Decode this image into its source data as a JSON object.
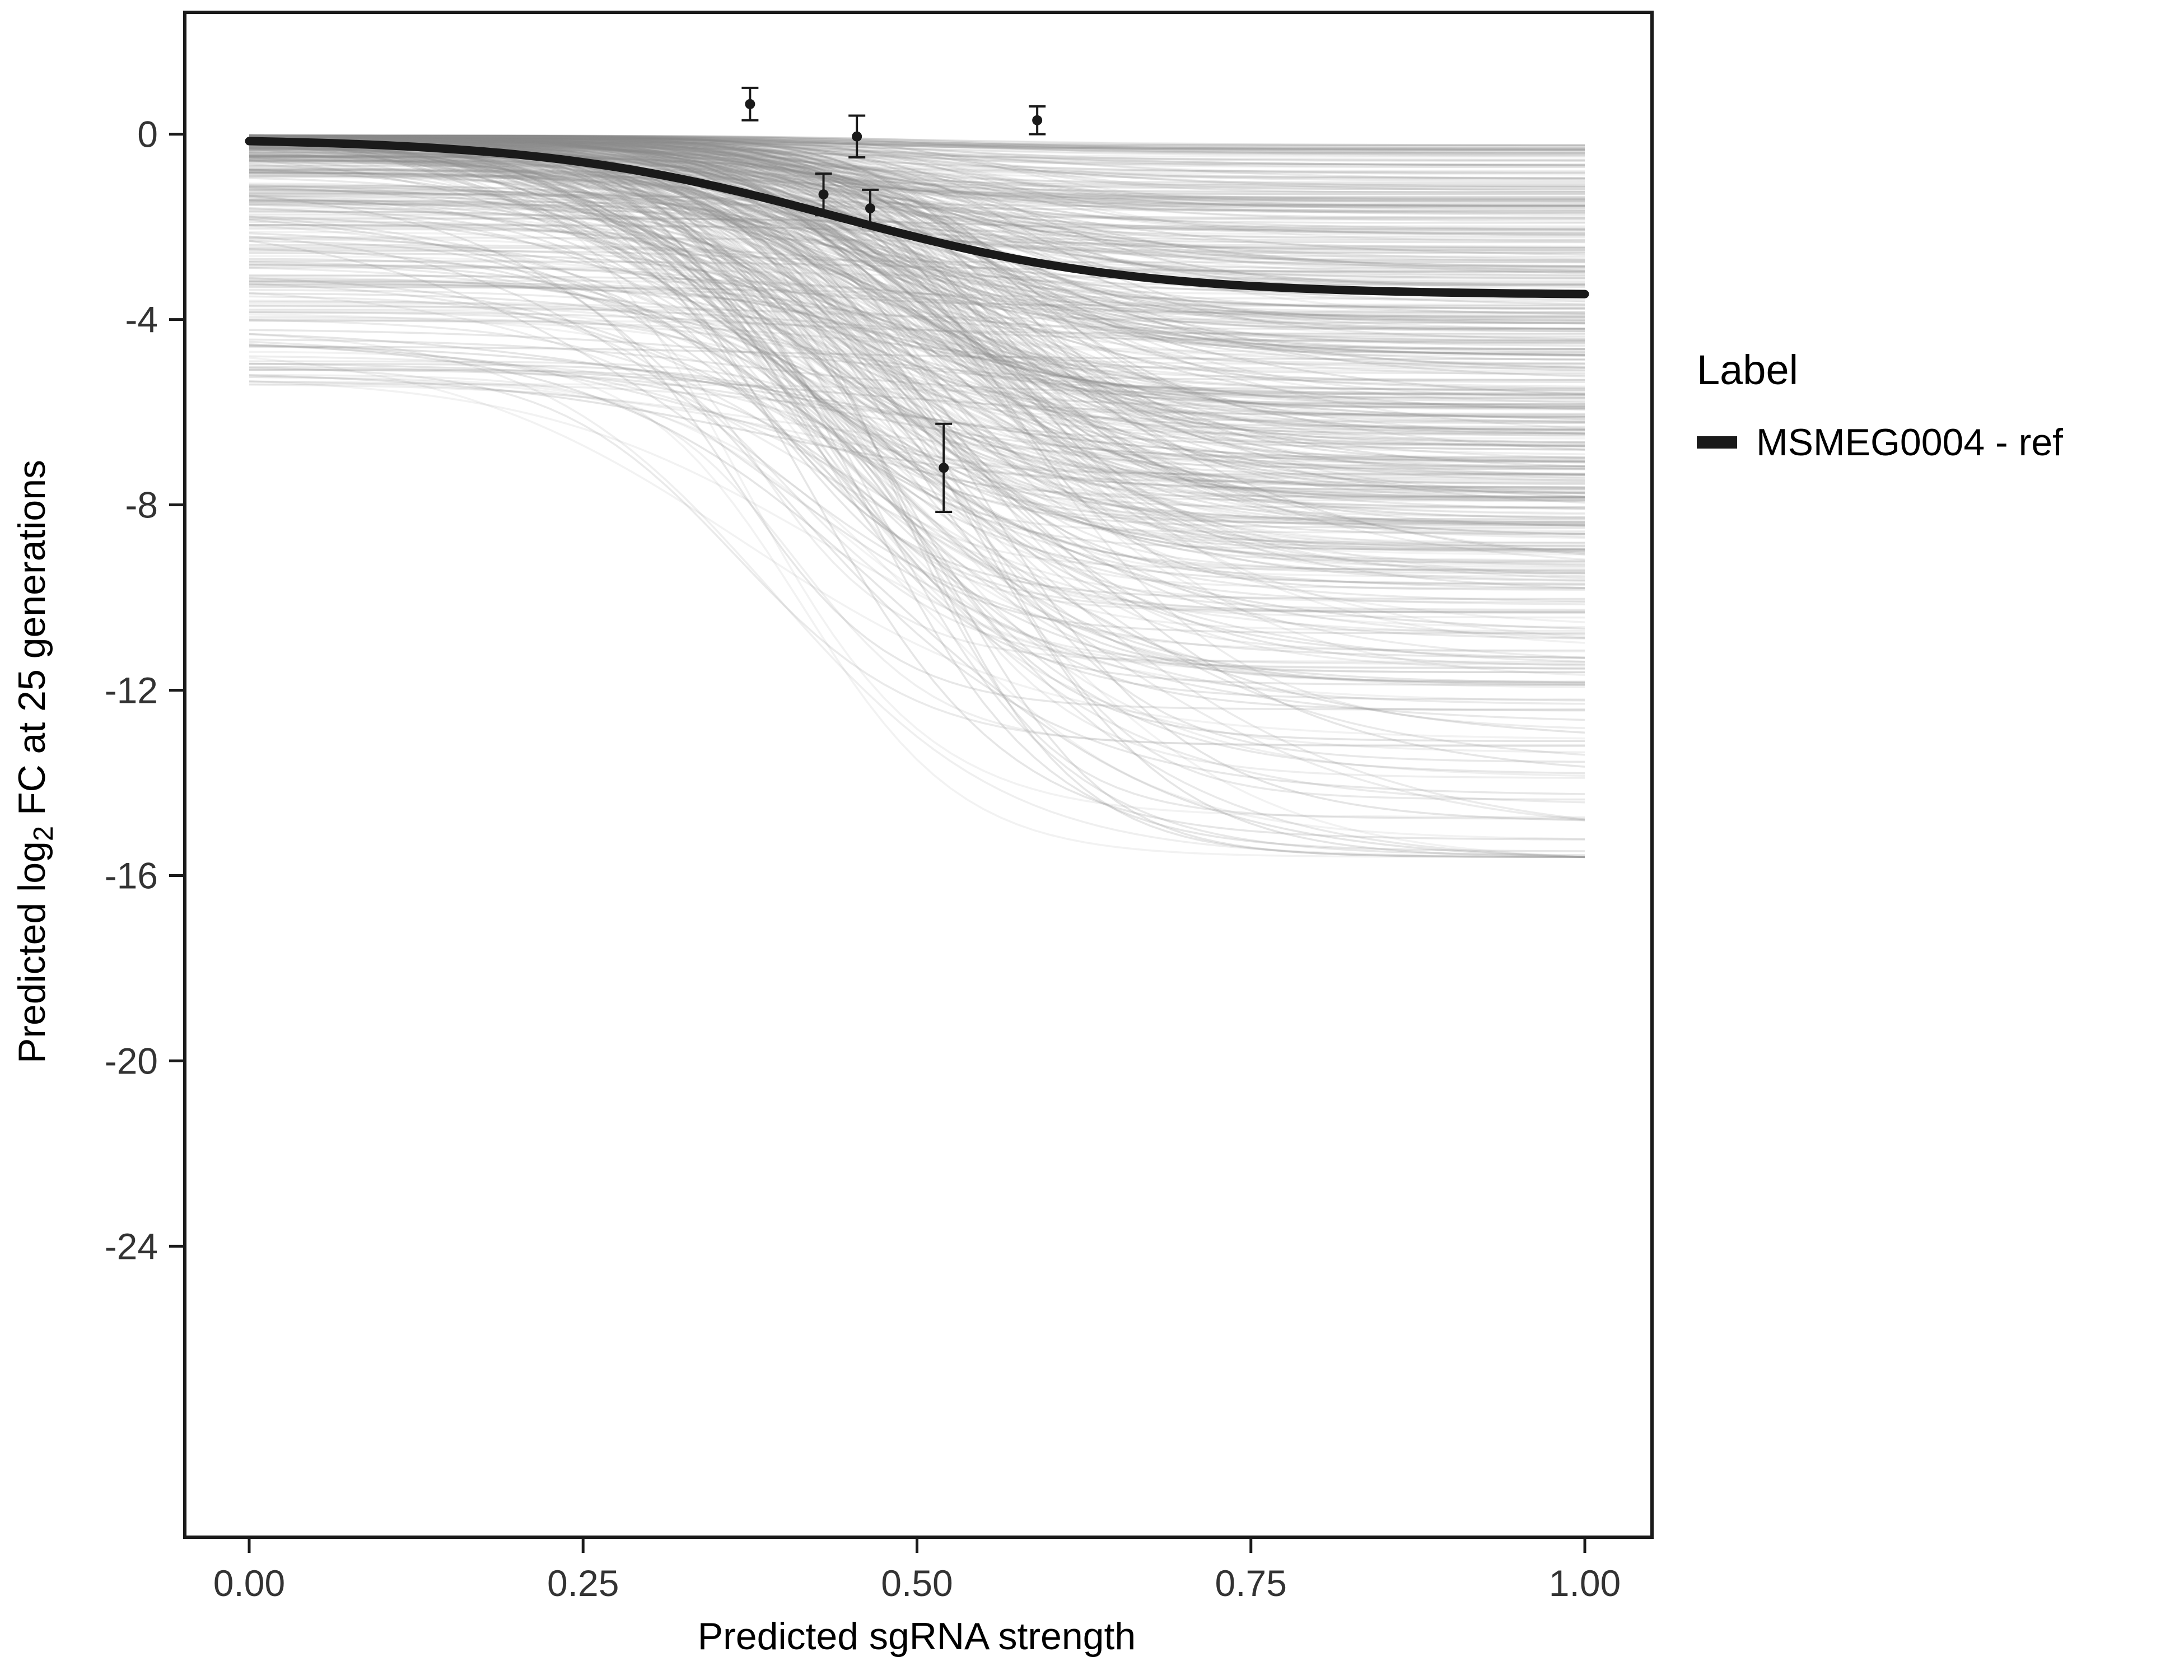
{
  "chart_data": {
    "type": "line",
    "title": "",
    "xlabel": "Predicted sgRNA strength",
    "ylabel": "Predicted log2 FC at 25 generations",
    "ylabel_parts": {
      "pre": "Predicted  log",
      "sub": "2",
      "post": " FC at 25 generations"
    },
    "xlim": [
      -0.0482,
      1.0503
    ],
    "ylim": [
      -30.28,
      2.63
    ],
    "grid": "off",
    "xticks": [
      {
        "v": 0.0,
        "label": "0.00"
      },
      {
        "v": 0.25,
        "label": "0.25"
      },
      {
        "v": 0.5,
        "label": "0.50"
      },
      {
        "v": 0.75,
        "label": "0.75"
      },
      {
        "v": 1.0,
        "label": "1.00"
      }
    ],
    "yticks": [
      {
        "v": 0,
        "label": "0"
      },
      {
        "v": -4,
        "label": "-4"
      },
      {
        "v": -8,
        "label": "-8"
      },
      {
        "v": -12,
        "label": "-12"
      },
      {
        "v": -16,
        "label": "-16"
      },
      {
        "v": -20,
        "label": "-20"
      },
      {
        "v": -24,
        "label": "-24"
      }
    ],
    "ref_curve": {
      "label": "MSMEG0004 - ref",
      "color": "#1a1a1a",
      "width": 15,
      "y0": -0.15,
      "plateau": -3.45,
      "midpoint": 0.44,
      "steepness": 9
    },
    "background_ensemble": {
      "description": "posterior ensemble of sigmoid response curves, x from 0 to 1",
      "count": 520,
      "seed": 42,
      "color": "#8c8c8c",
      "opacity_range": [
        0.1,
        0.24
      ],
      "stroke_width": 3.5,
      "y0_range": [
        -5.5,
        -0.03
      ],
      "plateau_min": -15.6,
      "midpoint_range": [
        0.36,
        0.58
      ],
      "steepness_range": [
        7,
        19
      ]
    },
    "points": [
      {
        "x": 0.375,
        "y": 0.65,
        "err": 0.35
      },
      {
        "x": 0.43,
        "y": -1.3,
        "err": 0.45
      },
      {
        "x": 0.455,
        "y": -0.05,
        "err": 0.45
      },
      {
        "x": 0.465,
        "y": -1.6,
        "err": 0.4
      },
      {
        "x": 0.52,
        "y": -7.2,
        "err": 0.95
      },
      {
        "x": 0.59,
        "y": 0.3,
        "err": 0.3
      }
    ],
    "point_style": {
      "color": "#1a1a1a",
      "radius": 9,
      "errorbar_width": 4,
      "cap_half_width": 15
    },
    "legend": {
      "title": "Label",
      "position": "right",
      "entries": [
        {
          "label": "MSMEG0004 - ref",
          "color": "#1a1a1a"
        }
      ]
    },
    "panel_border_color": "#1a1a1a"
  }
}
